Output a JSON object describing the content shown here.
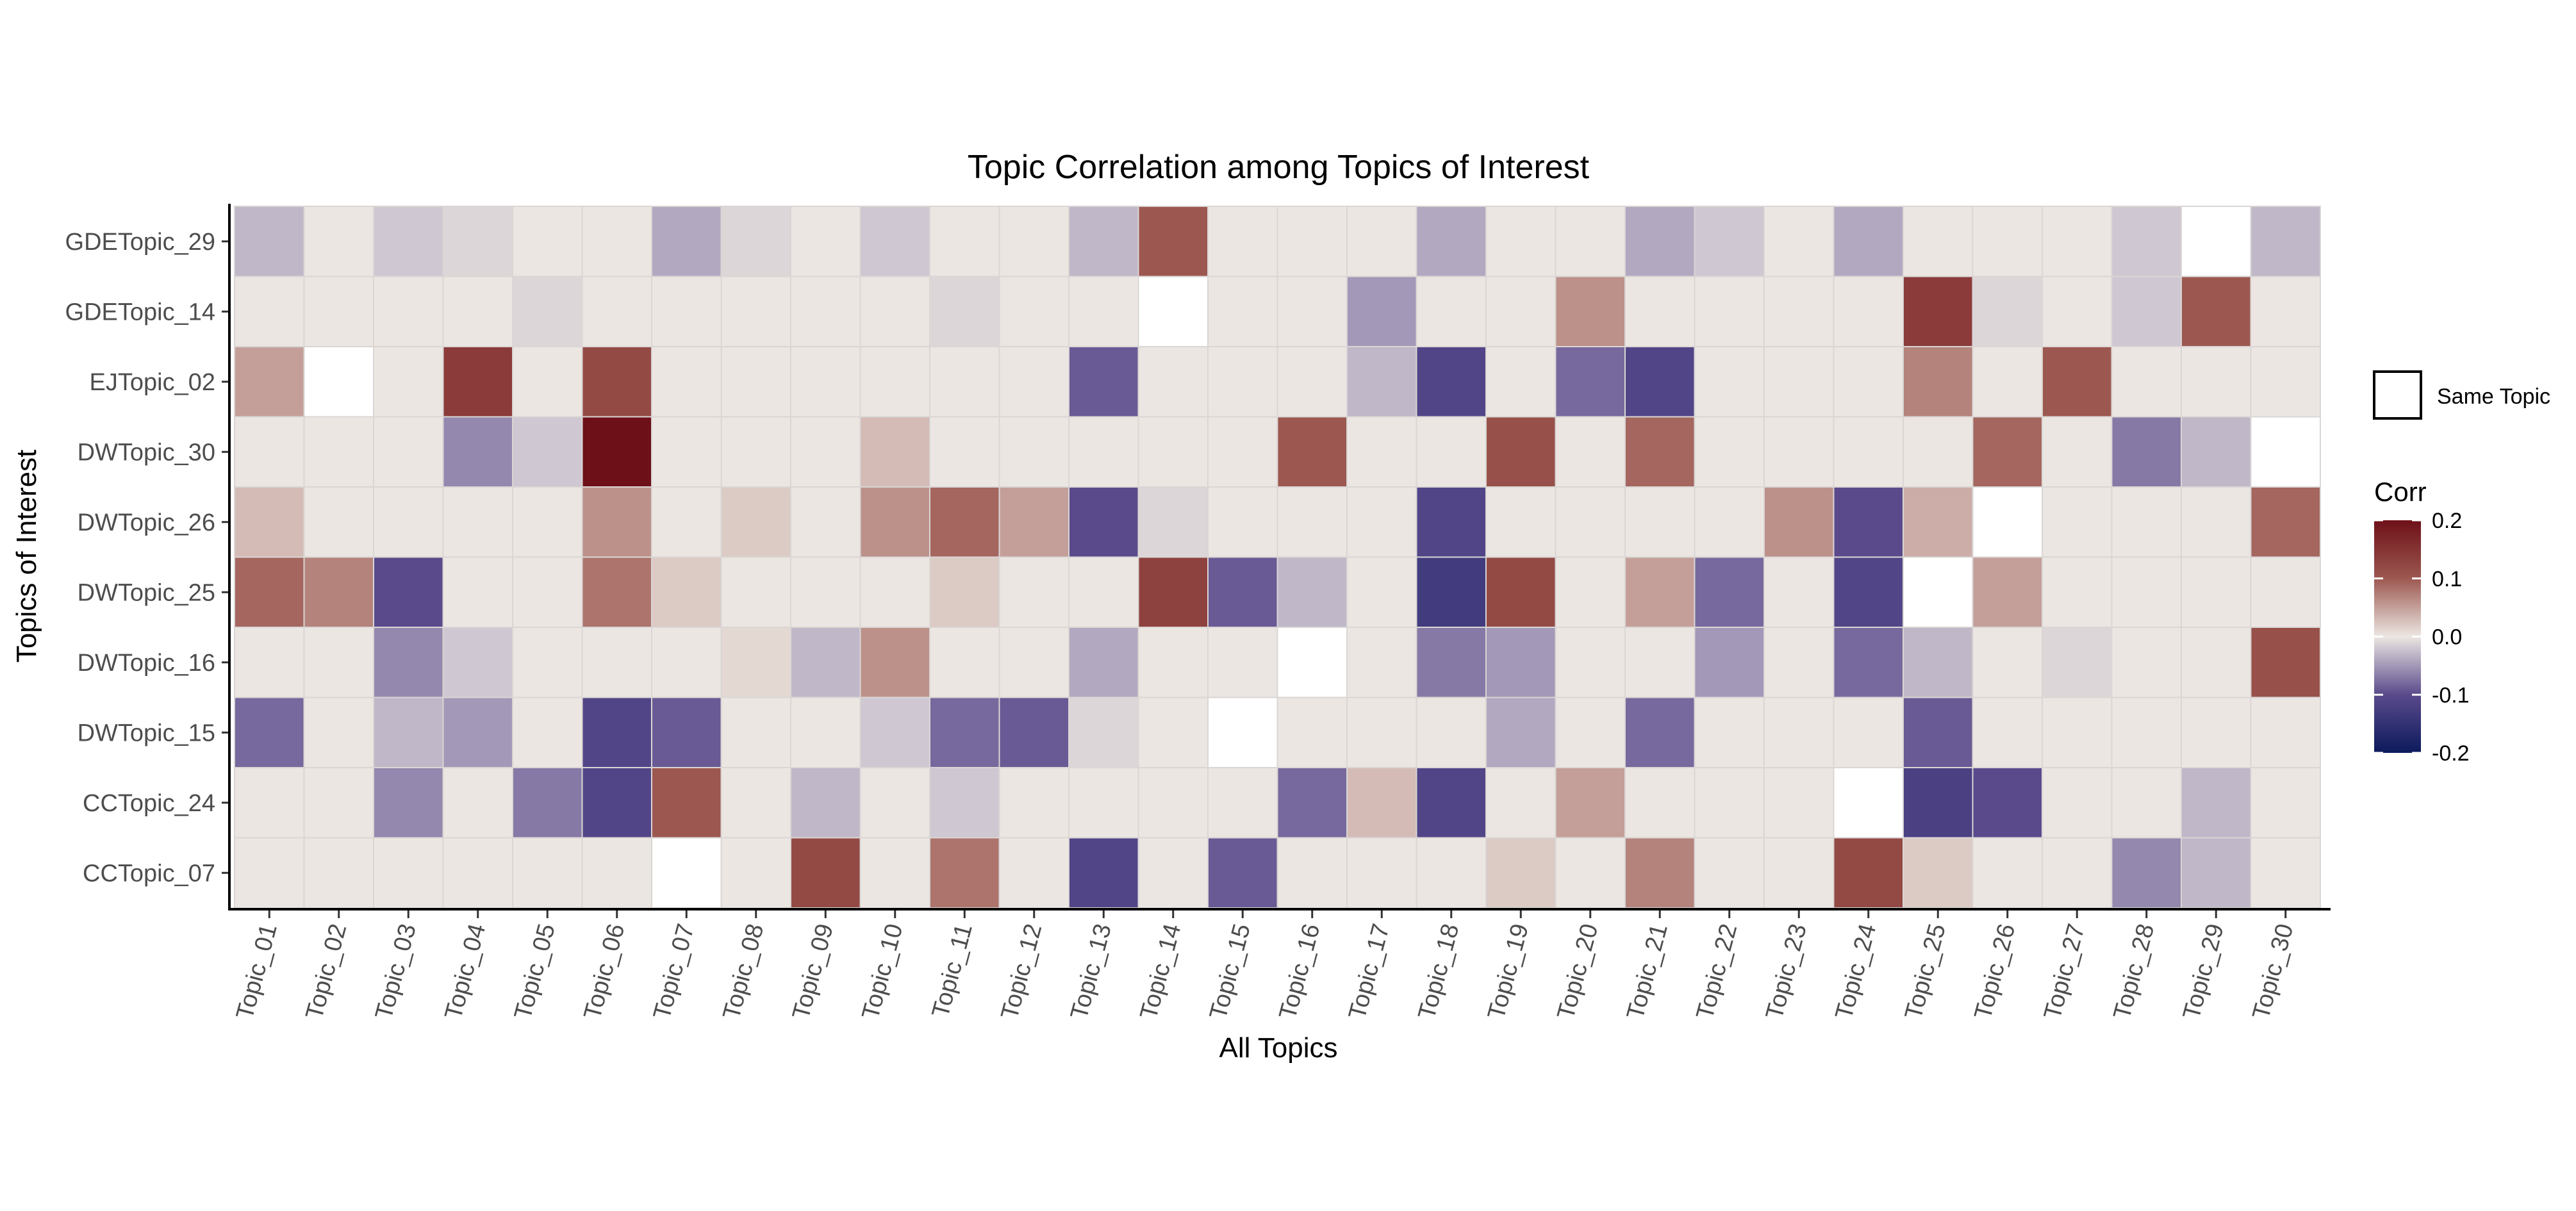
{
  "chart_data": {
    "type": "heatmap",
    "title": "Topic Correlation among Topics of Interest",
    "xlabel": "All Topics",
    "ylabel": "Topics of Interest",
    "x": [
      "Topic_01",
      "Topic_02",
      "Topic_03",
      "Topic_04",
      "Topic_05",
      "Topic_06",
      "Topic_07",
      "Topic_08",
      "Topic_09",
      "Topic_10",
      "Topic_11",
      "Topic_12",
      "Topic_13",
      "Topic_14",
      "Topic_15",
      "Topic_16",
      "Topic_17",
      "Topic_18",
      "Topic_19",
      "Topic_20",
      "Topic_21",
      "Topic_22",
      "Topic_23",
      "Topic_24",
      "Topic_25",
      "Topic_26",
      "Topic_27",
      "Topic_28",
      "Topic_29",
      "Topic_30"
    ],
    "y": [
      "GDETopic_29",
      "GDETopic_14",
      "EJTopic_02",
      "DWTopic_30",
      "DWTopic_26",
      "DWTopic_25",
      "DWTopic_16",
      "DWTopic_15",
      "CCTopic_24",
      "CCTopic_07"
    ],
    "values": [
      [
        -0.03,
        0,
        -0.02,
        -0.01,
        0,
        0,
        -0.04,
        -0.01,
        0,
        -0.02,
        0,
        0,
        -0.03,
        0.1,
        0,
        0,
        0,
        -0.04,
        0,
        0,
        -0.04,
        -0.02,
        0,
        -0.04,
        0,
        0,
        0,
        -0.02,
        null,
        -0.03
      ],
      [
        0,
        0,
        0,
        0,
        -0.01,
        0,
        0,
        0,
        0,
        0,
        -0.01,
        0,
        0,
        null,
        0,
        0,
        -0.05,
        0,
        0,
        0.06,
        0,
        0,
        0,
        0,
        0.14,
        -0.01,
        0,
        -0.02,
        0.1,
        0
      ],
      [
        0.05,
        null,
        0,
        0.14,
        0,
        0.12,
        0,
        0,
        0,
        0,
        0,
        0,
        -0.09,
        0,
        0,
        0,
        -0.03,
        -0.11,
        0,
        -0.08,
        -0.11,
        0,
        0,
        0,
        0.07,
        0,
        0.1,
        0,
        0,
        0
      ],
      [
        0,
        0,
        0,
        -0.06,
        -0.02,
        0.21,
        0,
        0,
        0,
        0.03,
        0,
        0,
        0,
        0,
        0,
        0.1,
        0,
        0,
        0.11,
        0,
        0.09,
        0,
        0,
        0,
        0,
        0.09,
        0,
        -0.07,
        -0.03,
        null
      ],
      [
        0.03,
        0,
        0,
        0,
        0,
        0.06,
        0,
        0.02,
        0,
        0.06,
        0.09,
        0.05,
        -0.1,
        -0.01,
        0,
        0,
        0,
        -0.11,
        0,
        0,
        0,
        0,
        0.06,
        -0.1,
        0.04,
        null,
        0,
        0,
        0,
        0.09
      ],
      [
        0.09,
        0.07,
        -0.1,
        0,
        0,
        0.08,
        0.02,
        0,
        0,
        0,
        0.02,
        0,
        0,
        0.13,
        -0.09,
        -0.03,
        0,
        -0.13,
        0.12,
        0,
        0.05,
        -0.08,
        0,
        -0.11,
        null,
        0.05,
        0,
        0,
        0,
        0
      ],
      [
        0,
        0,
        -0.06,
        -0.02,
        0,
        0,
        0,
        0.01,
        -0.03,
        0.06,
        0,
        0,
        -0.04,
        0,
        0,
        null,
        0,
        -0.07,
        -0.05,
        0,
        0,
        -0.05,
        0,
        -0.08,
        -0.03,
        0,
        -0.01,
        0,
        0,
        0.11
      ],
      [
        -0.08,
        0,
        -0.03,
        -0.05,
        0,
        -0.11,
        -0.09,
        0,
        0,
        -0.02,
        -0.08,
        -0.09,
        -0.01,
        0,
        null,
        0,
        0,
        0,
        -0.04,
        0,
        -0.08,
        0,
        0,
        0,
        -0.09,
        0,
        0,
        0,
        0,
        0
      ],
      [
        0,
        0,
        -0.06,
        0,
        -0.07,
        -0.11,
        0.1,
        0,
        -0.03,
        0,
        -0.02,
        0,
        0,
        0,
        0,
        -0.08,
        0.03,
        -0.11,
        0,
        0.05,
        0,
        0,
        0,
        null,
        -0.12,
        -0.1,
        0,
        0,
        -0.03,
        0
      ],
      [
        0,
        0,
        0,
        0,
        0,
        0,
        null,
        0,
        0.12,
        0,
        0.08,
        0,
        -0.11,
        0,
        -0.09,
        0,
        0,
        0,
        0.02,
        0,
        0.07,
        0,
        0,
        0.12,
        0.02,
        0,
        0,
        -0.06,
        -0.03,
        0
      ]
    ],
    "color_scale": {
      "name": "Corr",
      "limits": [
        -0.2,
        0.2
      ],
      "breaks": [
        0.2,
        0.1,
        0.0,
        -0.1,
        -0.2
      ],
      "break_labels": [
        "0.2",
        "0.1",
        "0.0",
        "-0.1",
        "-0.2"
      ],
      "colors": [
        "#0b1a5c",
        "#5a4a8c",
        "#ece6e2",
        "#9c5850",
        "#6e1018"
      ]
    },
    "same_topic_legend": "Same Topic",
    "grid": false,
    "legend_position": "right"
  }
}
